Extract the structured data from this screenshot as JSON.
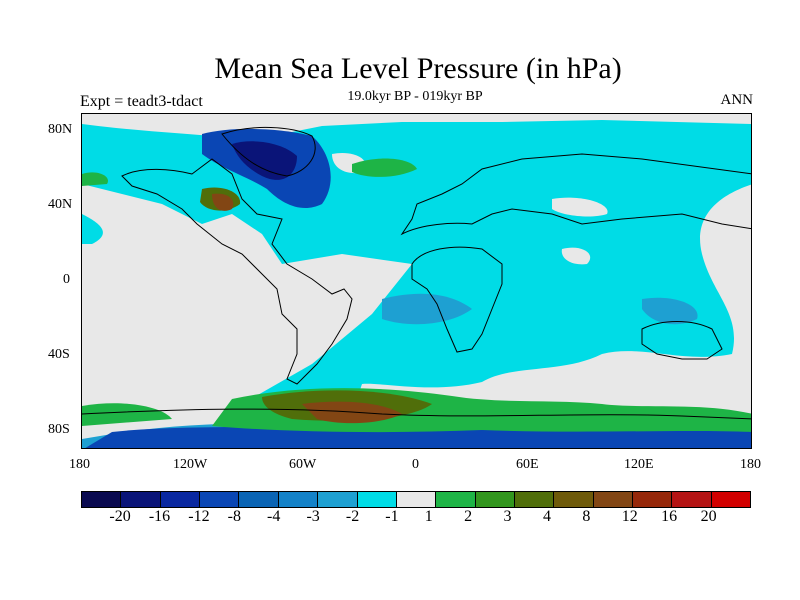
{
  "header": {
    "title": "Mean Sea Level Pressure (in hPa)",
    "subtitle_left": "Expt = teadt3-tdact",
    "subtitle_center": "19.0kyr BP - 019kyr BP",
    "subtitle_right": "ANN"
  },
  "axes": {
    "lat_ticks": [
      "80N",
      "40N",
      "0",
      "40S",
      "80S"
    ],
    "lon_ticks": [
      "180",
      "120W",
      "60W",
      "0",
      "60E",
      "120E",
      "180"
    ]
  },
  "colorbar": {
    "colors": [
      "#0a0a50",
      "#0a1478",
      "#0a28a0",
      "#0a46b4",
      "#0a64b4",
      "#1482c8",
      "#1ea0d2",
      "#00dce6",
      "#e8e8e8",
      "#1eb446",
      "#32961e",
      "#506e0a",
      "#6e5a0a",
      "#824614",
      "#96280a",
      "#b41414",
      "#d20000"
    ],
    "labels": [
      "-20",
      "-16",
      "-12",
      "-8",
      "-4",
      "-3",
      "-2",
      "-1",
      "1",
      "2",
      "3",
      "4",
      "8",
      "12",
      "16",
      "20"
    ]
  },
  "map": {
    "ocean_color": "#e8e8e8",
    "coastline_color": "#000000"
  }
}
